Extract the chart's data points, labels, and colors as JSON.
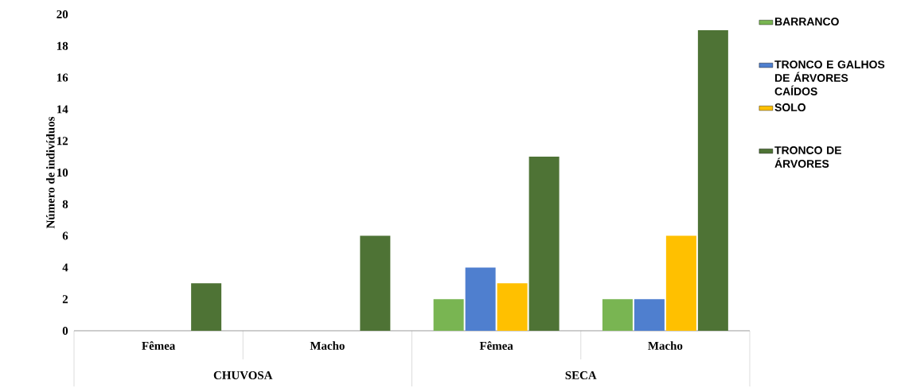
{
  "chart_data": {
    "type": "bar",
    "ylabel": "Número de indivíduos",
    "categories": [
      "Fêmea",
      "Macho",
      "Fêmea",
      "Macho"
    ],
    "annotations": [
      "CHUVOSA",
      "SECA"
    ],
    "series": [
      {
        "name": "BARRANCO",
        "color": "#79b552",
        "values": [
          0,
          0,
          2,
          2
        ]
      },
      {
        "name": "TRONCO E GALHOS DE ÁRVORES CAÍDOS",
        "color": "#4f7fcf",
        "values": [
          0,
          0,
          4,
          2
        ]
      },
      {
        "name": "SOLO",
        "color": "#ffc000",
        "values": [
          0,
          0,
          3,
          6
        ]
      },
      {
        "name": "TRONCO DE ÁRVORES",
        "color": "#4e7335",
        "values": [
          3,
          6,
          11,
          19
        ]
      }
    ],
    "ylim": [
      0,
      20
    ],
    "yticks": [
      0,
      2,
      4,
      6,
      8,
      10,
      12,
      14,
      16,
      18,
      20
    ],
    "grid": false,
    "legend": "right"
  }
}
